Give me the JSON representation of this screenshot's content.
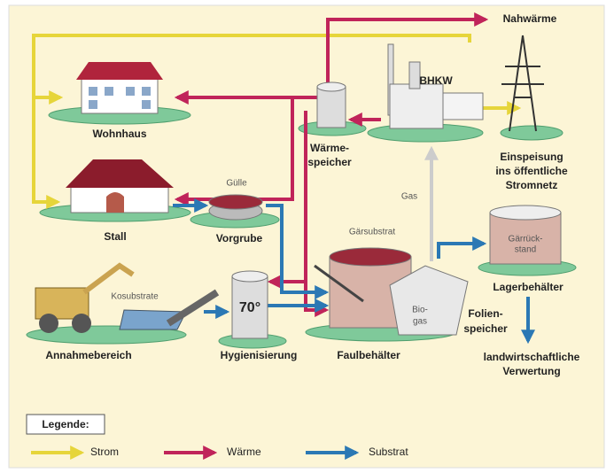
{
  "title": "Nahwärme",
  "nodes": {
    "bhkw": {
      "lines": [
        "BHKW"
      ]
    },
    "wohnhaus": {
      "lines": [
        "Wohnhaus"
      ]
    },
    "waermespeicher": {
      "lines": [
        "Wärme-",
        "speicher"
      ]
    },
    "einspeisung": {
      "lines": [
        "Einspeisung",
        "ins öffentliche",
        "Stromnetz"
      ]
    },
    "stall": {
      "lines": [
        "Stall"
      ]
    },
    "guelle": {
      "lines": [
        "Gülle"
      ]
    },
    "vorgrube": {
      "lines": [
        "Vorgrube"
      ]
    },
    "gas": {
      "lines": [
        "Gas"
      ]
    },
    "gaersubstrat": {
      "lines": [
        "Gärsubstrat"
      ]
    },
    "gaerrueckstand": {
      "lines": [
        "Gärrück-",
        "stand"
      ]
    },
    "lagerbehaelter": {
      "lines": [
        "Lagerbehälter"
      ]
    },
    "kosubstrate": {
      "lines": [
        "Kosubstrate"
      ]
    },
    "temperatur": {
      "lines": [
        "70°"
      ]
    },
    "biogas": {
      "lines": [
        "Bio-",
        "gas"
      ]
    },
    "folienspeicher": {
      "lines": [
        "Folien-",
        "speicher"
      ]
    },
    "annahmebereich": {
      "lines": [
        "Annahmebereich"
      ]
    },
    "hygienisierung": {
      "lines": [
        "Hygienisierung"
      ]
    },
    "faulbehaelter": {
      "lines": [
        "Faulbehälter"
      ]
    },
    "verwertung": {
      "lines": [
        "landwirtschaftliche",
        "Verwertung"
      ]
    }
  },
  "legend": {
    "title": "Legende:",
    "items": [
      "Strom",
      "Wärme",
      "Substrat"
    ]
  }
}
